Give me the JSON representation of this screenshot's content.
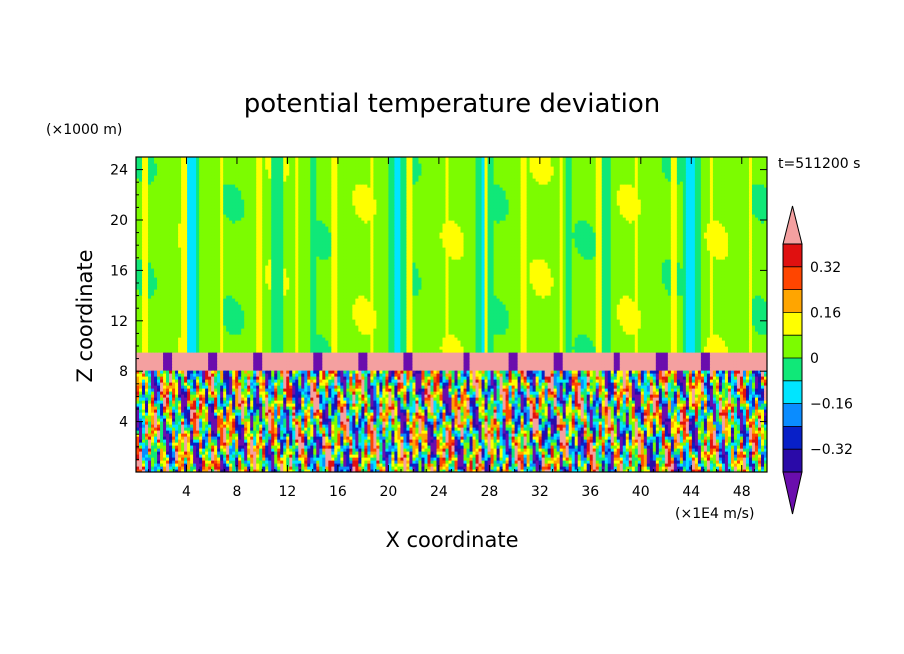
{
  "chart_data": {
    "type": "heatmap",
    "title": "potential temperature deviation",
    "xlabel": "X coordinate",
    "ylabel": "Z coordinate",
    "x_unit": "(×1E4 m/s)",
    "y_unit": "(×1000 m)",
    "time_label": "t=511200 s",
    "xlim": [
      0,
      50
    ],
    "ylim": [
      0,
      25
    ],
    "x_ticks": [
      4,
      8,
      12,
      16,
      20,
      24,
      28,
      32,
      36,
      40,
      44,
      48
    ],
    "y_ticks": [
      4,
      8,
      12,
      16,
      20,
      24
    ],
    "colorbar": {
      "tick_labels": [
        "0.32",
        "0.16",
        "0",
        "−0.16",
        "−0.32"
      ],
      "tick_values": [
        0.32,
        0.16,
        0,
        -0.16,
        -0.32
      ],
      "levels": [
        -0.4,
        -0.32,
        -0.24,
        -0.16,
        -0.08,
        0,
        0.08,
        0.16,
        0.24,
        0.32,
        0.4
      ],
      "colors": [
        "#6a0dad",
        "#2a0aa8",
        "#0820c8",
        "#0a8cff",
        "#00e5ff",
        "#10e878",
        "#7cfc00",
        "#ffff00",
        "#ffa500",
        "#ff4500",
        "#e01010",
        "#f4a0a0"
      ],
      "extend": "both"
    },
    "regions": [
      {
        "z": [
          9.6,
          25
        ],
        "value": "0 to 0.08 background with -0.08 to 0 columns"
      },
      {
        "z": [
          8.2,
          9.6
        ],
        "value": "> 0.4 layer with < -0.4 blobs"
      },
      {
        "z": [
          0,
          8.2
        ],
        "value": "turbulent mixture of -0.4 to 0.4"
      }
    ]
  }
}
